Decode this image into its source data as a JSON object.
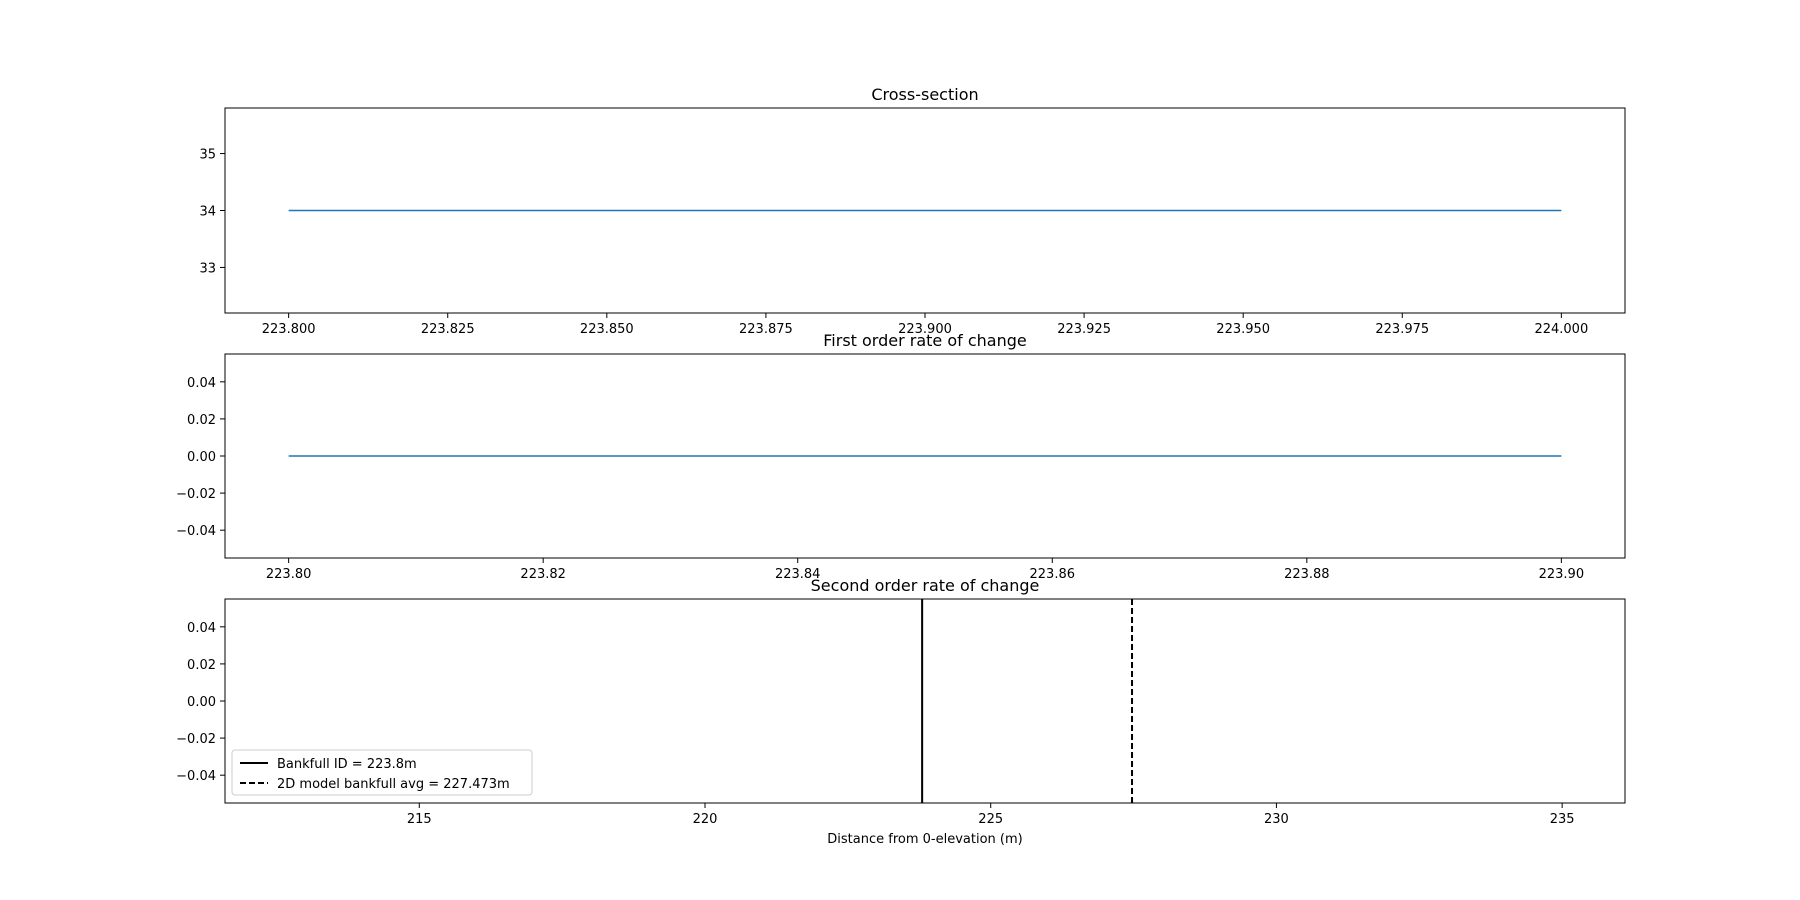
{
  "chart_data": [
    {
      "type": "line",
      "title": "Cross-section",
      "xlabel": "",
      "ylabel": "",
      "xlim": [
        223.79,
        224.01
      ],
      "ylim": [
        32.2,
        35.8
      ],
      "xticks": [
        223.8,
        223.825,
        223.85,
        223.875,
        223.9,
        223.925,
        223.95,
        223.975,
        224.0
      ],
      "xtick_labels": [
        "223.800",
        "223.825",
        "223.850",
        "223.875",
        "223.900",
        "223.925",
        "223.950",
        "223.975",
        "224.000"
      ],
      "yticks": [
        33,
        34,
        35
      ],
      "ytick_labels": [
        "33",
        "34",
        "35"
      ],
      "series": [
        {
          "x": [
            223.8,
            224.0
          ],
          "y": [
            34,
            34
          ],
          "color": "#1f77b4",
          "linestyle": "solid"
        }
      ],
      "grid": false
    },
    {
      "type": "line",
      "title": "First order rate of change",
      "xlabel": "",
      "ylabel": "",
      "xlim": [
        223.795,
        223.905
      ],
      "ylim": [
        -0.055,
        0.055
      ],
      "xticks": [
        223.8,
        223.82,
        223.84,
        223.86,
        223.88,
        223.9
      ],
      "xtick_labels": [
        "223.80",
        "223.82",
        "223.84",
        "223.86",
        "223.88",
        "223.90"
      ],
      "yticks": [
        -0.04,
        -0.02,
        0.0,
        0.02,
        0.04
      ],
      "ytick_labels": [
        "−0.04",
        "−0.02",
        "0.00",
        "0.02",
        "0.04"
      ],
      "series": [
        {
          "x": [
            223.8,
            223.9
          ],
          "y": [
            0,
            0
          ],
          "color": "#1f77b4",
          "linestyle": "solid"
        }
      ],
      "grid": false
    },
    {
      "type": "line",
      "title": "Second order rate of change",
      "xlabel": "Distance from 0-elevation (m)",
      "ylabel": "",
      "xlim": [
        211.6,
        236.1
      ],
      "ylim": [
        -0.055,
        0.055
      ],
      "xticks": [
        215,
        220,
        225,
        230,
        235
      ],
      "xtick_labels": [
        "215",
        "220",
        "225",
        "230",
        "235"
      ],
      "yticks": [
        -0.04,
        -0.02,
        0.0,
        0.02,
        0.04
      ],
      "ytick_labels": [
        "−0.04",
        "−0.02",
        "0.00",
        "0.02",
        "0.04"
      ],
      "series": [],
      "vlines": [
        {
          "x": 223.8,
          "name": "Bankfull ID = 223.8m",
          "color": "#000000",
          "linestyle": "solid"
        },
        {
          "x": 227.473,
          "name": "2D model bankfull avg = 227.473m",
          "color": "#000000",
          "linestyle": "dashed"
        }
      ],
      "legend": {
        "position": "lower-left",
        "entries": [
          "Bankfull ID = 223.8m",
          "2D model bankfull avg = 227.473m"
        ]
      },
      "grid": false
    }
  ]
}
